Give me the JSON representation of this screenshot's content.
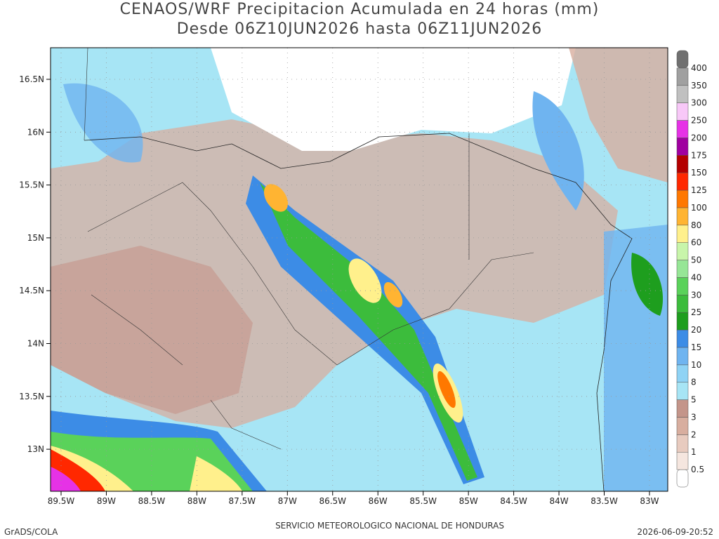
{
  "header": {
    "title_lines": [
      "CENAOS/WRF Precipitacion Acumulada en 24 horas (mm)",
      "Desde 06Z10JUN2026 hasta 06Z11JUN2026"
    ]
  },
  "map": {
    "lat_labels": [
      "16.5N",
      "16N",
      "15.5N",
      "15N",
      "14.5N",
      "14N",
      "13.5N",
      "13N"
    ],
    "lon_labels": [
      "89.5W",
      "89W",
      "88.5W",
      "88W",
      "87.5W",
      "87W",
      "86.5W",
      "86W",
      "85.5W",
      "85W",
      "84.5W",
      "84W",
      "83.5W",
      "83W"
    ]
  },
  "colorbar": {
    "labels": [
      "0.5",
      "1",
      "2",
      "3",
      "5",
      "8",
      "10",
      "15",
      "20",
      "25",
      "30",
      "40",
      "50",
      "60",
      "80",
      "100",
      "125",
      "150",
      "175",
      "200",
      "250",
      "300",
      "350",
      "400"
    ],
    "colors": [
      "#ffffff",
      "#f5e6df",
      "#e8cbbf",
      "#d8ae9f",
      "#c4958a",
      "#a7e5f5",
      "#8fd3f5",
      "#6fb4f0",
      "#3c8ce6",
      "#1e9e1e",
      "#3cbc3c",
      "#5ad25a",
      "#96e696",
      "#c8f5aa",
      "#fff08c",
      "#ffb432",
      "#ff7800",
      "#ff2800",
      "#b40000",
      "#a000a0",
      "#e632e6",
      "#f8c8f8",
      "#c0c0c0",
      "#a0a0a0",
      "#707070"
    ]
  },
  "footer": {
    "left": "GrADS/COLA",
    "center": "SERVICIO METEOROLOGICO NACIONAL DE HONDURAS",
    "right": "2026-06-09-20:52"
  }
}
